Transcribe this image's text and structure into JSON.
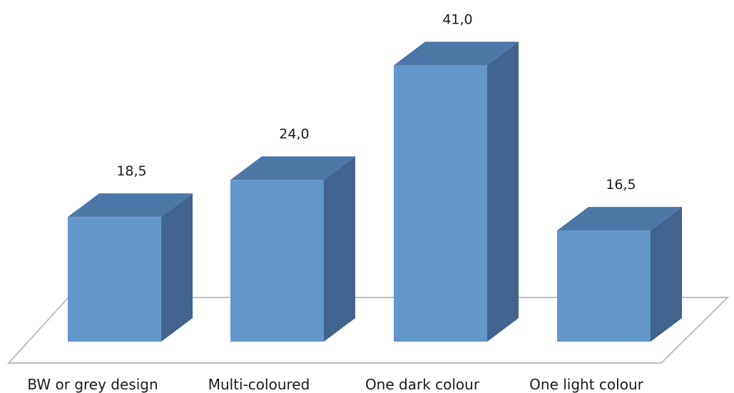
{
  "chart_data": {
    "type": "bar",
    "categories": [
      "BW or grey design",
      "Multi-coloured",
      "One dark colour",
      "One light colour"
    ],
    "values": [
      18.5,
      24.0,
      41.0,
      16.5
    ],
    "value_labels": [
      "18,5",
      "24,0",
      "41,0",
      "16,5"
    ],
    "ylim": [
      0,
      41
    ],
    "grid": false,
    "legend": "none",
    "style": "3d-column",
    "colors": {
      "front": "#6397cc",
      "top": "#4d77a7",
      "side": "#41638d",
      "edge": "#5b86b8",
      "floor": "#bfbfbf"
    }
  }
}
